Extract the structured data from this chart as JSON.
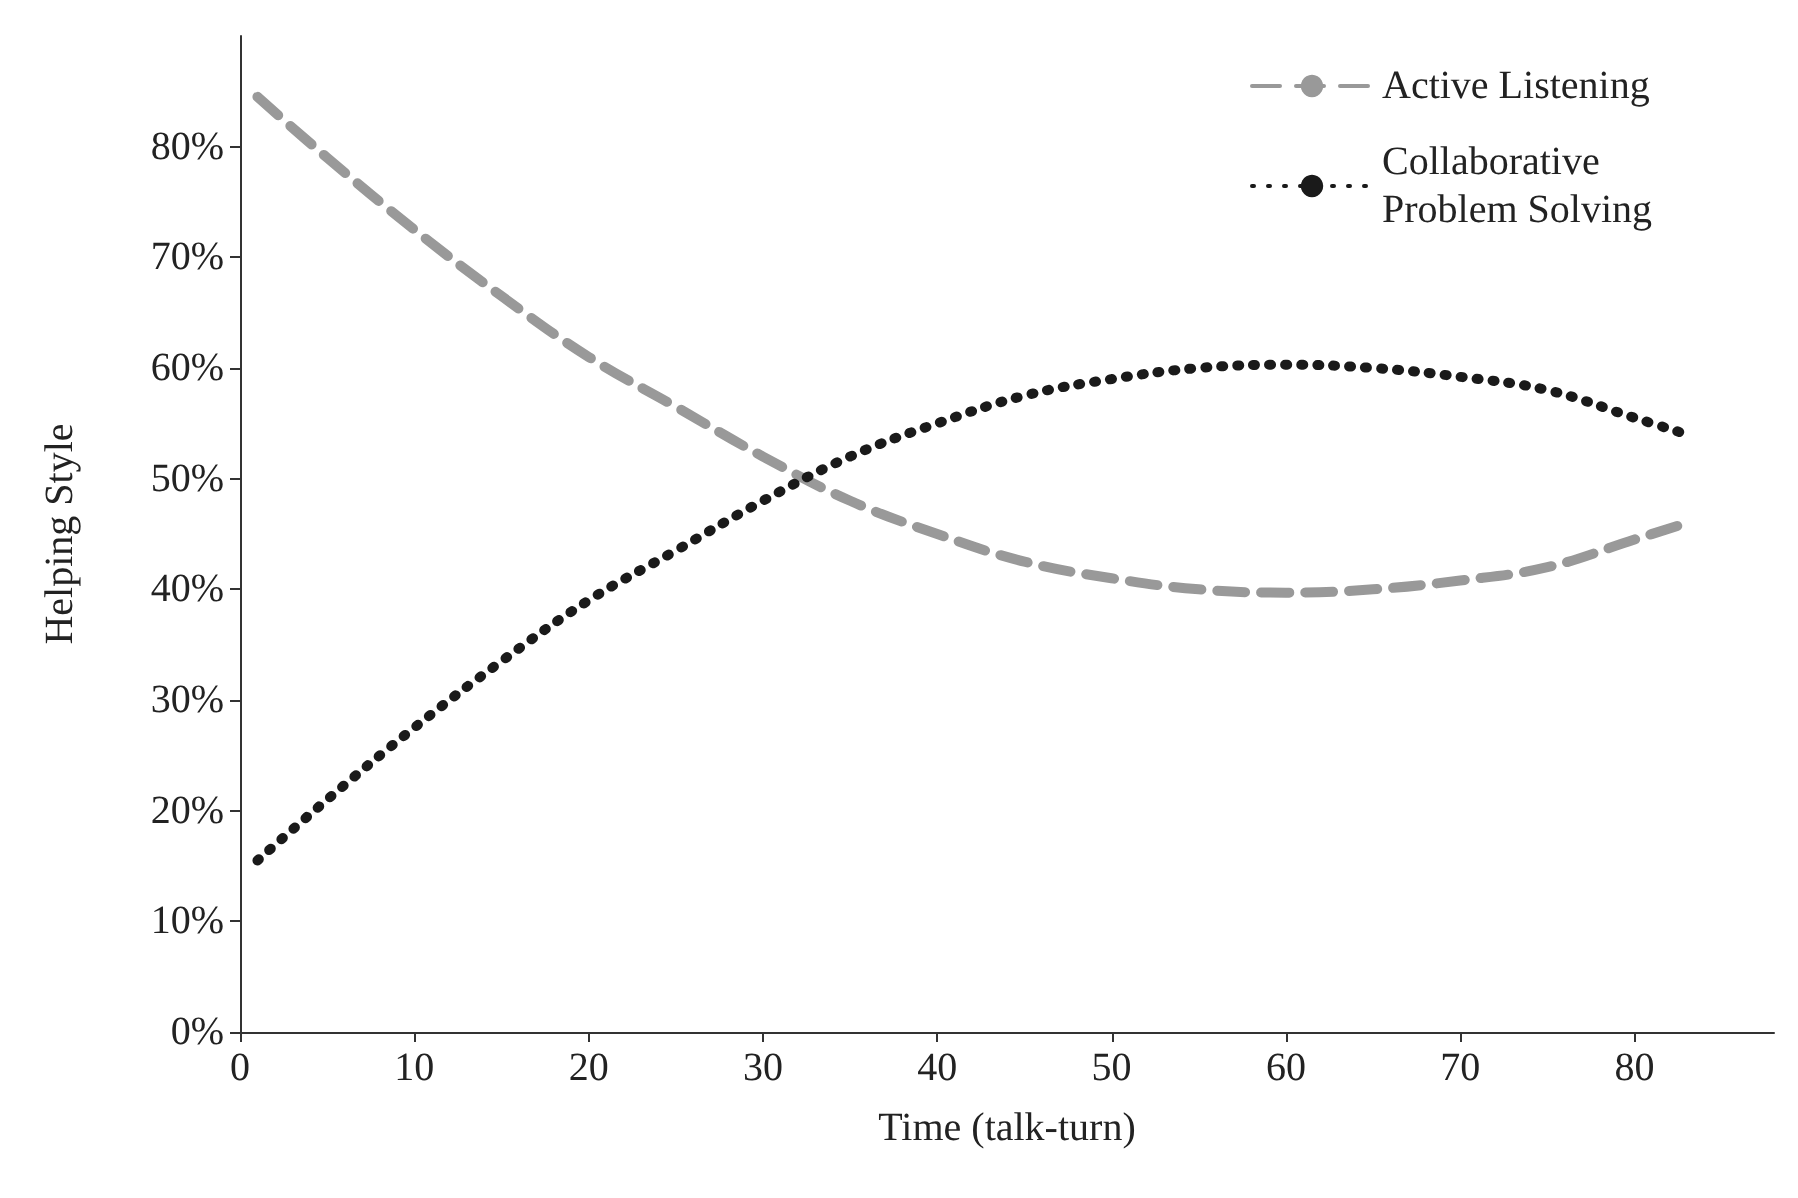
{
  "chart_data": {
    "type": "line",
    "xlabel": "Time (talk-turn)",
    "ylabel": "Helping Style",
    "xlim": [
      0,
      88
    ],
    "xticks": [
      0,
      10,
      20,
      30,
      40,
      50,
      60,
      70,
      80
    ],
    "ylim": [
      0,
      90
    ],
    "yticks": [
      {
        "value": 0,
        "label": "0%"
      },
      {
        "value": 10,
        "label": "10%"
      },
      {
        "value": 20,
        "label": "20%"
      },
      {
        "value": 30,
        "label": "30%"
      },
      {
        "value": 40,
        "label": "40%"
      },
      {
        "value": 50,
        "label": "50%"
      },
      {
        "value": 60,
        "label": "60%"
      },
      {
        "value": 70,
        "label": "70%"
      },
      {
        "value": 80,
        "label": "80%"
      }
    ],
    "x": [
      1,
      5,
      10,
      15,
      20,
      25,
      30,
      35,
      40,
      45,
      50,
      55,
      60,
      65,
      70,
      75,
      80,
      83
    ],
    "series": [
      {
        "name": "Active Listening",
        "color": "#999999",
        "line_style": "dashed",
        "values": [
          84.5,
          79,
          72.5,
          66.5,
          61,
          56.5,
          52,
          48,
          45,
          42.5,
          41,
          40,
          39.7,
          40,
          40.8,
          42,
          44.5,
          46
        ]
      },
      {
        "name": "Collaborative Problem Solving",
        "color": "#1a1a1a",
        "line_style": "dotted",
        "values": [
          15.5,
          21,
          27.5,
          33.5,
          39,
          43.5,
          48,
          52,
          55,
          57.5,
          59,
          60,
          60.3,
          60,
          59.2,
          58,
          55.5,
          54
        ]
      }
    ],
    "marker": "none",
    "grid": false,
    "legend": "top right"
  }
}
